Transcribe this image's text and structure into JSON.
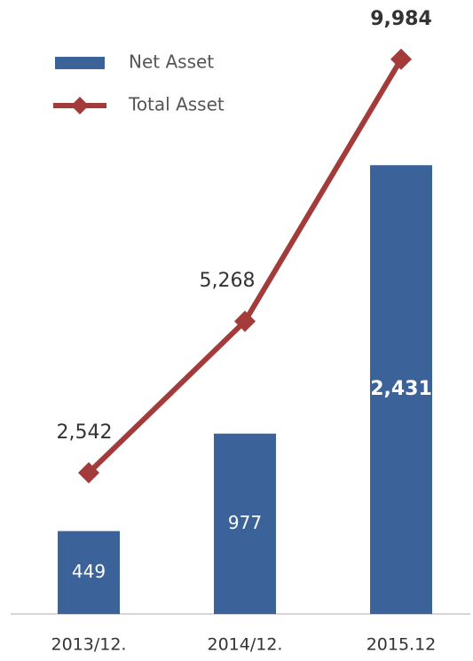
{
  "chart_data": {
    "type": "bar",
    "categories": [
      "2013/12.",
      "2014/12.",
      "2015.12"
    ],
    "series": [
      {
        "name": "Net Asset",
        "type": "bar",
        "color": "#3b6399",
        "values": [
          449,
          977,
          2431
        ],
        "value_labels": [
          "449",
          "977",
          "2,431"
        ]
      },
      {
        "name": "Total Asset",
        "type": "line",
        "axis": "y2",
        "color": "#a33b3b",
        "values": [
          2542,
          5268,
          9984
        ],
        "value_labels": [
          "2,542",
          "5,268",
          "9,984"
        ]
      }
    ],
    "ylim": [
      0,
      3100
    ],
    "y2lim": [
      0,
      10300
    ],
    "legend": "top-left"
  }
}
